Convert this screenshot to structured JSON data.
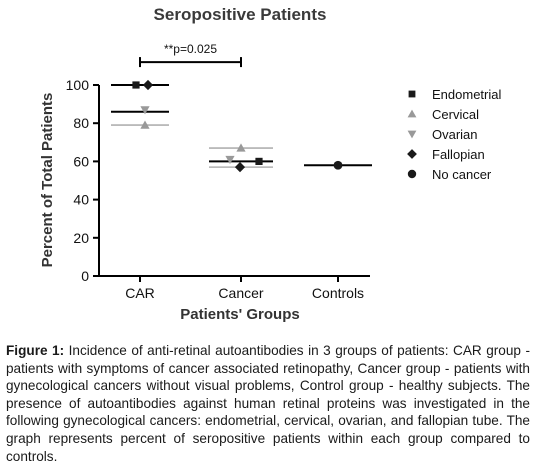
{
  "chart_data": {
    "type": "scatter",
    "title": "Seropositive Patients",
    "xlabel": "Patients' Groups",
    "ylabel": "Percent of Total Patients",
    "categories": [
      "CAR",
      "Cancer",
      "Controls"
    ],
    "ylim": [
      0,
      100
    ],
    "yticks": [
      0,
      20,
      40,
      60,
      80,
      100
    ],
    "legend_position": "right",
    "series": [
      {
        "name": "Endometrial",
        "marker": "square",
        "values": [
          100,
          60,
          null
        ]
      },
      {
        "name": "Cervical",
        "marker": "triangle-up",
        "values": [
          79,
          67,
          null
        ]
      },
      {
        "name": "Ovarian",
        "marker": "triangle-down",
        "values": [
          87,
          61,
          null
        ]
      },
      {
        "name": "Fallopian",
        "marker": "diamond",
        "values": [
          100,
          57,
          null
        ]
      },
      {
        "name": "No cancer",
        "marker": "circle",
        "values": [
          null,
          null,
          58
        ]
      }
    ],
    "mean_lines": [
      {
        "category": "CAR",
        "values": [
          100,
          86,
          79
        ]
      },
      {
        "category": "Cancer",
        "values": [
          67,
          60,
          57
        ]
      },
      {
        "category": "Controls",
        "values": [
          58
        ]
      }
    ],
    "annotation": {
      "text": "**p=0.025",
      "from": "CAR",
      "to": "Cancer",
      "level": 112
    },
    "colors": {
      "marks": "#1a1a1a",
      "triangles": "#999999",
      "lines": "#000000"
    }
  },
  "caption": {
    "label": "Figure 1:",
    "text": " Incidence of anti-retinal autoantibodies in 3 groups of patients: CAR group - patients with symptoms of cancer associated retinopathy, Cancer group - patients with gynecological cancers without visual problems, Control group - healthy subjects. The presence of autoantibodies against human retinal proteins was investigated in the following gynecological cancers: endometrial, cervical, ovarian, and fallopian tube. The graph represents percent of seropositive patients within each group compared to controls."
  }
}
